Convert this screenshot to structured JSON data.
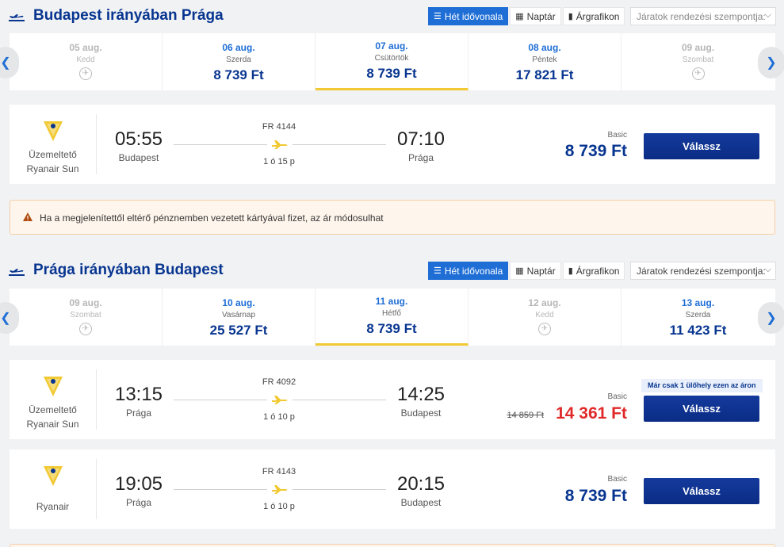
{
  "sections": [
    {
      "title": "Budapest irányában Prága",
      "view_buttons": [
        {
          "label": "Hét idővonala",
          "icon": "list-icon"
        },
        {
          "label": "Naptár",
          "icon": "calendar-icon"
        },
        {
          "label": "Árgrafikon",
          "icon": "bar-chart-icon"
        }
      ],
      "sort_placeholder": "Járatok rendezési szempontja:",
      "dates": [
        {
          "date": "05 aug.",
          "weekday": "Kedd",
          "price": "",
          "status": "no-flight"
        },
        {
          "date": "06 aug.",
          "weekday": "Szerda",
          "price": "8 739 Ft",
          "status": "available"
        },
        {
          "date": "07 aug.",
          "weekday": "Csütörtök",
          "price": "8 739 Ft",
          "status": "selected"
        },
        {
          "date": "08 aug.",
          "weekday": "Péntek",
          "price": "17 821 Ft",
          "status": "available"
        },
        {
          "date": "09 aug.",
          "weekday": "Szombat",
          "price": "",
          "status": "no-flight"
        }
      ],
      "flights": [
        {
          "operator": [
            "Üzemeltető",
            "Ryanair Sun"
          ],
          "dep_time": "05:55",
          "dep_city": "Budapest",
          "flight_no": "FR 4144",
          "duration": "1 ó 15 p",
          "arr_time": "07:10",
          "arr_city": "Prága",
          "fare": "Basic",
          "price": "8 739 Ft",
          "old_price": "",
          "seats_note": "",
          "button": "Válassz"
        }
      ]
    },
    {
      "title": "Prága irányában Budapest",
      "view_buttons": [
        {
          "label": "Hét idővonala",
          "icon": "list-icon"
        },
        {
          "label": "Naptár",
          "icon": "calendar-icon"
        },
        {
          "label": "Árgrafikon",
          "icon": "bar-chart-icon"
        }
      ],
      "sort_placeholder": "Járatok rendezési szempontja:",
      "dates": [
        {
          "date": "09 aug.",
          "weekday": "Szombat",
          "price": "",
          "status": "no-flight"
        },
        {
          "date": "10 aug.",
          "weekday": "Vasárnap",
          "price": "25 527 Ft",
          "status": "available"
        },
        {
          "date": "11 aug.",
          "weekday": "Hétfő",
          "price": "8 739 Ft",
          "status": "selected"
        },
        {
          "date": "12 aug.",
          "weekday": "Kedd",
          "price": "",
          "status": "no-flight"
        },
        {
          "date": "13 aug.",
          "weekday": "Szerda",
          "price": "11 423 Ft",
          "status": "available"
        }
      ],
      "flights": [
        {
          "operator": [
            "Üzemeltető",
            "Ryanair Sun"
          ],
          "dep_time": "13:15",
          "dep_city": "Prága",
          "flight_no": "FR 4092",
          "duration": "1 ó 10 p",
          "arr_time": "14:25",
          "arr_city": "Budapest",
          "fare": "Basic",
          "price": "14 361 Ft",
          "old_price": "14 859 Ft",
          "seats_note": "Már csak 1 ülőhely ezen az áron",
          "button": "Válassz"
        },
        {
          "operator": [
            "Ryanair"
          ],
          "dep_time": "19:05",
          "dep_city": "Prága",
          "flight_no": "FR 4143",
          "duration": "1 ó 10 p",
          "arr_time": "20:15",
          "arr_city": "Budapest",
          "fare": "Basic",
          "price": "8 739 Ft",
          "old_price": "",
          "seats_note": "",
          "button": "Válassz"
        }
      ]
    }
  ],
  "warning": {
    "text": "Ha a megjelenítettől eltérő pénznemben vezetett kártyával fizet, az ár módosulhat",
    "icon": "warning-icon"
  },
  "colors": {
    "brand": "#073590",
    "accent": "#1e6ed6",
    "selected_underline": "#f1c933",
    "promo_price": "#e02a2a",
    "ryanair_yellow": "#f1c933"
  }
}
